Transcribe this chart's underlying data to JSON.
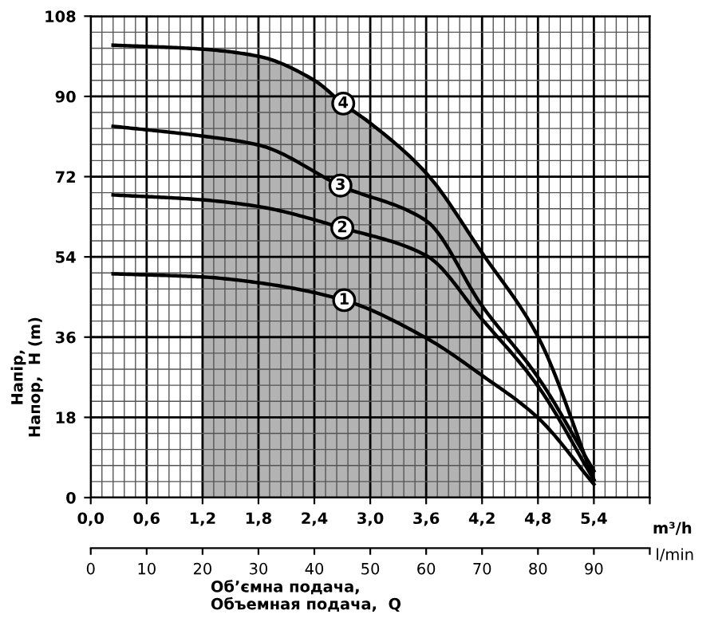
{
  "chart_data": {
    "type": "line",
    "xlabel": "m³/h",
    "x2label": "l/min",
    "ylabel": "Напір,\nНапор,  H (m)",
    "annotations": [
      "Об’ємна подача,\nОбъемная подача,  Q",
      {
        "text": "1",
        "x": 2.72,
        "y": 44.3
      },
      {
        "text": "2",
        "x": 2.7,
        "y": 60.5
      },
      {
        "text": "3",
        "x": 2.68,
        "y": 70.0
      },
      {
        "text": "4",
        "x": 2.71,
        "y": 88.4
      }
    ],
    "series": [
      {
        "color": "#000000",
        "x": [
          0.24,
          1.2,
          1.8,
          2.7,
          3.6,
          4.2,
          4.8,
          5.4
        ],
        "values": [
          50.2,
          49.5,
          48.2,
          44.4,
          35.8,
          27.4,
          17.9,
          3
        ]
      },
      {
        "color": "#000000",
        "x": [
          0.24,
          1.2,
          1.8,
          2.7,
          3.6,
          4.2,
          4.8,
          5.4
        ],
        "values": [
          67.9,
          66.8,
          65.3,
          60.5,
          54.3,
          40,
          25,
          4
        ]
      },
      {
        "color": "#000000",
        "x": [
          0.24,
          1.2,
          1.8,
          2.7,
          3.6,
          4.2,
          4.8,
          5.4
        ],
        "values": [
          83.3,
          81.1,
          79.1,
          69.8,
          62.1,
          43,
          27,
          6
        ]
      },
      {
        "color": "#000000",
        "x": [
          0.24,
          1.2,
          1.8,
          2.4,
          2.7,
          3.0,
          3.6,
          4.2,
          4.8,
          5.4
        ],
        "values": [
          101.5,
          100.6,
          99,
          93.6,
          88.5,
          84,
          72.8,
          54.9,
          36.1,
          4
        ]
      }
    ],
    "bands": [
      {
        "axis": "x",
        "from": 1.2,
        "to": 4.2,
        "color": "#a6a6a6"
      }
    ],
    "xlim": [
      0,
      6.0
    ],
    "xticks": [
      {
        "value": 0,
        "label": "0,0"
      },
      {
        "value": 0.6,
        "label": "0,6"
      },
      {
        "value": 1.2,
        "label": "1,2"
      },
      {
        "value": 1.8,
        "label": "1,8"
      },
      {
        "value": 2.4,
        "label": "2,4"
      },
      {
        "value": 3.0,
        "label": "3,0"
      },
      {
        "value": 3.6,
        "label": "3,6"
      },
      {
        "value": 4.2,
        "label": "4,2"
      },
      {
        "value": 4.8,
        "label": "4,8"
      },
      {
        "value": 5.4,
        "label": "5,4"
      },
      {
        "value": 6.0,
        "label": null
      }
    ],
    "x2lim": [
      0,
      100
    ],
    "x2ticks": [
      0,
      10,
      20,
      30,
      40,
      50,
      60,
      70,
      80,
      90,
      {
        "value": 100,
        "label": null
      }
    ],
    "ylim": [
      0,
      108
    ],
    "yticks": [
      0,
      18,
      36,
      54,
      72,
      90,
      108
    ],
    "grid": true,
    "legend": false,
    "marker": "none",
    "line_style": "solid"
  }
}
